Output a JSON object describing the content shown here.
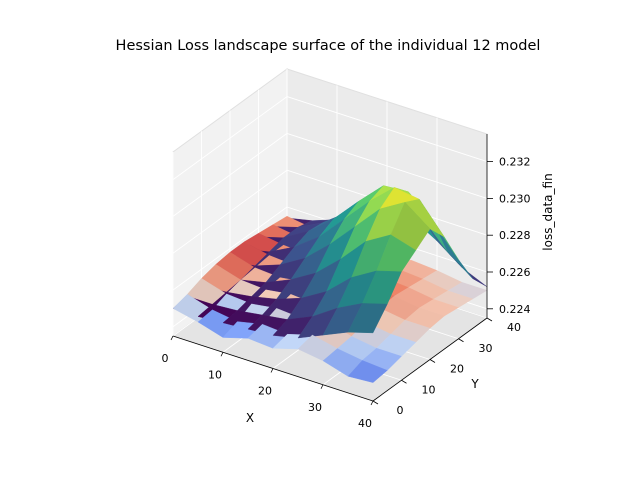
{
  "chart_data": {
    "type": "surface3d",
    "title": "Hessian Loss landscape surface of the individual 12 model",
    "xlabel": "X",
    "ylabel": "Y",
    "zlabel": "loss_data_fin",
    "x_ticks": [
      "0",
      "10",
      "20",
      "30",
      "40"
    ],
    "y_ticks": [
      "0",
      "10",
      "20",
      "30",
      "40"
    ],
    "z_ticks": [
      "0.224",
      "0.226",
      "0.228",
      "0.230",
      "0.232"
    ],
    "xlim": [
      0,
      40
    ],
    "ylim": [
      0,
      40
    ],
    "zlim": [
      0.2235,
      0.2335
    ],
    "grid": true,
    "colormaps": [
      "coolwarm",
      "viridis"
    ],
    "surfaces": [
      {
        "colormap": "coolwarm",
        "rows_y": [
          0,
          5,
          10,
          15,
          20,
          25,
          30,
          35,
          40
        ],
        "cols_x": [
          0,
          5,
          10,
          15,
          20,
          25,
          30,
          35,
          40
        ],
        "z": [
          [
            0.225,
            0.2247,
            0.2243,
            0.2247,
            0.2246,
            0.225,
            0.2248,
            0.2244,
            0.2245
          ],
          [
            0.2252,
            0.2248,
            0.2246,
            0.2249,
            0.2248,
            0.2252,
            0.2249,
            0.2247,
            0.2246
          ],
          [
            0.2255,
            0.2251,
            0.225,
            0.2252,
            0.2251,
            0.2254,
            0.225,
            0.2248,
            0.2248
          ],
          [
            0.2257,
            0.2253,
            0.2252,
            0.2254,
            0.2253,
            0.2255,
            0.2252,
            0.225,
            0.225
          ],
          [
            0.2258,
            0.2254,
            0.2253,
            0.2255,
            0.2254,
            0.2256,
            0.2254,
            0.2252,
            0.2252
          ],
          [
            0.2258,
            0.2255,
            0.2254,
            0.2256,
            0.2255,
            0.2256,
            0.2255,
            0.2253,
            0.2253
          ],
          [
            0.2257,
            0.2255,
            0.2254,
            0.2255,
            0.2254,
            0.2255,
            0.2254,
            0.2252,
            0.2252
          ],
          [
            0.2256,
            0.2254,
            0.2253,
            0.2254,
            0.2253,
            0.2254,
            0.2253,
            0.2251,
            0.2251
          ],
          [
            0.2255,
            0.2253,
            0.2252,
            0.2253,
            0.2252,
            0.2253,
            0.2252,
            0.225,
            0.225
          ]
        ]
      },
      {
        "colormap": "viridis",
        "rows_y": [
          0,
          5,
          10,
          15,
          20,
          25,
          30,
          35,
          40
        ],
        "cols_x": [
          0,
          5,
          10,
          15,
          20,
          25,
          30,
          35,
          40
        ],
        "z": [
          [
            0.225,
            0.225,
            0.2251,
            0.2252,
            0.2253,
            0.2256,
            0.2262,
            0.2268,
            0.2272
          ],
          [
            0.2251,
            0.2251,
            0.2252,
            0.2254,
            0.2256,
            0.2262,
            0.2271,
            0.2278,
            0.2282
          ],
          [
            0.2251,
            0.2252,
            0.2254,
            0.2257,
            0.2262,
            0.227,
            0.2282,
            0.229,
            0.2294
          ],
          [
            0.2252,
            0.2253,
            0.2256,
            0.2262,
            0.227,
            0.2282,
            0.2296,
            0.2304,
            0.23
          ],
          [
            0.2253,
            0.2255,
            0.226,
            0.2268,
            0.228,
            0.2294,
            0.2308,
            0.2316,
            0.2306
          ],
          [
            0.2254,
            0.2257,
            0.2264,
            0.2274,
            0.2288,
            0.2302,
            0.2314,
            0.2312,
            0.2296
          ],
          [
            0.2255,
            0.2259,
            0.2267,
            0.2278,
            0.2292,
            0.2305,
            0.2306,
            0.2294,
            0.2278
          ],
          [
            0.2255,
            0.2259,
            0.2266,
            0.2276,
            0.2288,
            0.2294,
            0.2286,
            0.2272,
            0.2262
          ],
          [
            0.2254,
            0.2257,
            0.2262,
            0.227,
            0.2276,
            0.2276,
            0.2268,
            0.2258,
            0.2252
          ]
        ]
      }
    ]
  }
}
